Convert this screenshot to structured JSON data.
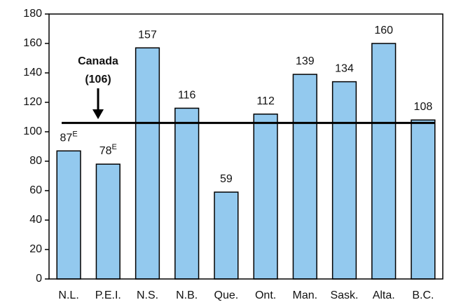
{
  "chart_data": {
    "type": "bar",
    "categories": [
      "N.L.",
      "P.E.I.",
      "N.S.",
      "N.B.",
      "Que.",
      "Ont.",
      "Man.",
      "Sask.",
      "Alta.",
      "B.C."
    ],
    "values": [
      87,
      78,
      157,
      116,
      59,
      112,
      139,
      134,
      160,
      108
    ],
    "value_flags": [
      "E",
      "E",
      null,
      null,
      null,
      null,
      null,
      null,
      null,
      null
    ],
    "color": "#93c9ee",
    "ylim": [
      0,
      180
    ],
    "yticks": [
      0,
      20,
      40,
      60,
      80,
      100,
      120,
      140,
      160,
      180
    ],
    "reference_line": {
      "label": "Canada",
      "value": 106,
      "value_label": "(106)"
    }
  }
}
